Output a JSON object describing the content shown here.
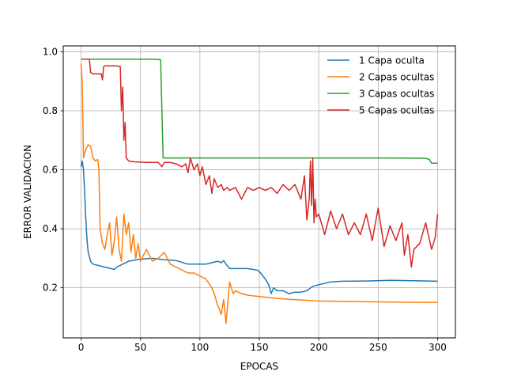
{
  "chart_data": {
    "type": "line",
    "title": "",
    "xlabel": "EPOCAS",
    "ylabel": "ERROR VALIDACION",
    "xlim": [
      -15,
      315
    ],
    "ylim": [
      0.03,
      1.02
    ],
    "xticks": [
      0,
      50,
      100,
      150,
      200,
      250,
      300
    ],
    "yticks": [
      0.2,
      0.4,
      0.6,
      0.8,
      1.0
    ],
    "xtick_labels": [
      "0",
      "50",
      "100",
      "150",
      "200",
      "250",
      "300"
    ],
    "ytick_labels": [
      "0.2",
      "0.4",
      "0.6",
      "0.8",
      "1.0"
    ],
    "grid": true,
    "legend_position": "top-right",
    "series": [
      {
        "name": "1 Capa oculta",
        "color": "#1f77b4",
        "x": [
          0,
          1,
          2,
          3,
          4,
          5,
          6,
          8,
          10,
          15,
          20,
          25,
          28,
          30,
          35,
          40,
          50,
          60,
          70,
          80,
          90,
          100,
          105,
          110,
          115,
          118,
          120,
          122,
          125,
          130,
          140,
          148,
          150,
          152,
          155,
          158,
          160,
          162,
          165,
          170,
          175,
          180,
          185,
          190,
          195,
          200,
          210,
          220,
          240,
          260,
          280,
          300
        ],
        "y": [
          0.61,
          0.63,
          0.6,
          0.52,
          0.43,
          0.36,
          0.32,
          0.29,
          0.28,
          0.275,
          0.27,
          0.265,
          0.262,
          0.27,
          0.28,
          0.29,
          0.297,
          0.3,
          0.295,
          0.292,
          0.28,
          0.28,
          0.28,
          0.285,
          0.29,
          0.285,
          0.292,
          0.28,
          0.265,
          0.265,
          0.265,
          0.26,
          0.255,
          0.245,
          0.23,
          0.21,
          0.18,
          0.2,
          0.19,
          0.19,
          0.18,
          0.185,
          0.185,
          0.19,
          0.205,
          0.21,
          0.22,
          0.222,
          0.223,
          0.225,
          0.224,
          0.222
        ]
      },
      {
        "name": "2 Capas ocultas",
        "color": "#ff7f0e",
        "x": [
          0,
          1,
          2,
          4,
          6,
          8,
          10,
          12,
          14,
          15,
          16,
          18,
          20,
          22,
          24,
          26,
          28,
          30,
          32,
          34,
          36,
          38,
          40,
          42,
          44,
          46,
          48,
          50,
          55,
          60,
          65,
          70,
          75,
          80,
          85,
          90,
          95,
          100,
          105,
          110,
          112,
          115,
          118,
          120,
          122,
          125,
          128,
          130,
          135,
          140,
          150,
          170,
          200,
          250,
          300
        ],
        "y": [
          0.96,
          0.9,
          0.64,
          0.67,
          0.685,
          0.68,
          0.64,
          0.63,
          0.635,
          0.6,
          0.4,
          0.35,
          0.33,
          0.38,
          0.42,
          0.31,
          0.36,
          0.44,
          0.33,
          0.29,
          0.45,
          0.38,
          0.42,
          0.32,
          0.38,
          0.3,
          0.35,
          0.29,
          0.33,
          0.29,
          0.3,
          0.32,
          0.28,
          0.27,
          0.26,
          0.25,
          0.25,
          0.24,
          0.23,
          0.2,
          0.18,
          0.14,
          0.11,
          0.16,
          0.08,
          0.22,
          0.18,
          0.19,
          0.18,
          0.175,
          0.17,
          0.162,
          0.155,
          0.152,
          0.15
        ]
      },
      {
        "name": "3 Capas ocultas",
        "color": "#2ca02c",
        "x": [
          0,
          20,
          40,
          60,
          67,
          68,
          69,
          80,
          100,
          150,
          200,
          250,
          290,
          293,
          295,
          300
        ],
        "y": [
          0.975,
          0.975,
          0.975,
          0.975,
          0.973,
          0.8,
          0.64,
          0.64,
          0.64,
          0.64,
          0.64,
          0.64,
          0.639,
          0.635,
          0.622,
          0.622
        ]
      },
      {
        "name": "5 Capas ocultas",
        "color": "#d62728",
        "x": [
          0,
          5,
          7,
          8,
          10,
          15,
          17,
          18,
          19,
          20,
          21,
          25,
          30,
          33,
          34,
          35,
          36,
          37,
          38,
          40,
          45,
          55,
          65,
          68,
          70,
          72,
          75,
          80,
          85,
          88,
          90,
          92,
          95,
          98,
          100,
          102,
          105,
          108,
          110,
          112,
          115,
          118,
          120,
          123,
          125,
          130,
          135,
          140,
          145,
          150,
          155,
          160,
          165,
          170,
          175,
          180,
          185,
          188,
          190,
          192,
          193,
          194,
          195,
          196,
          197,
          198,
          200,
          205,
          210,
          215,
          220,
          225,
          230,
          235,
          240,
          245,
          250,
          255,
          260,
          265,
          270,
          272,
          275,
          278,
          280,
          285,
          290,
          295,
          298,
          300
        ],
        "y": [
          0.975,
          0.975,
          0.975,
          0.93,
          0.925,
          0.925,
          0.925,
          0.905,
          0.95,
          0.952,
          0.952,
          0.952,
          0.952,
          0.95,
          0.8,
          0.88,
          0.7,
          0.76,
          0.64,
          0.63,
          0.627,
          0.625,
          0.625,
          0.61,
          0.625,
          0.625,
          0.625,
          0.62,
          0.61,
          0.62,
          0.59,
          0.64,
          0.6,
          0.62,
          0.58,
          0.61,
          0.55,
          0.58,
          0.52,
          0.57,
          0.54,
          0.55,
          0.53,
          0.54,
          0.53,
          0.54,
          0.5,
          0.54,
          0.53,
          0.54,
          0.53,
          0.54,
          0.52,
          0.55,
          0.53,
          0.55,
          0.5,
          0.58,
          0.43,
          0.5,
          0.63,
          0.48,
          0.64,
          0.42,
          0.5,
          0.44,
          0.45,
          0.38,
          0.46,
          0.4,
          0.45,
          0.38,
          0.42,
          0.38,
          0.45,
          0.36,
          0.47,
          0.34,
          0.41,
          0.36,
          0.42,
          0.31,
          0.38,
          0.27,
          0.33,
          0.35,
          0.42,
          0.33,
          0.37,
          0.45
        ]
      }
    ]
  }
}
